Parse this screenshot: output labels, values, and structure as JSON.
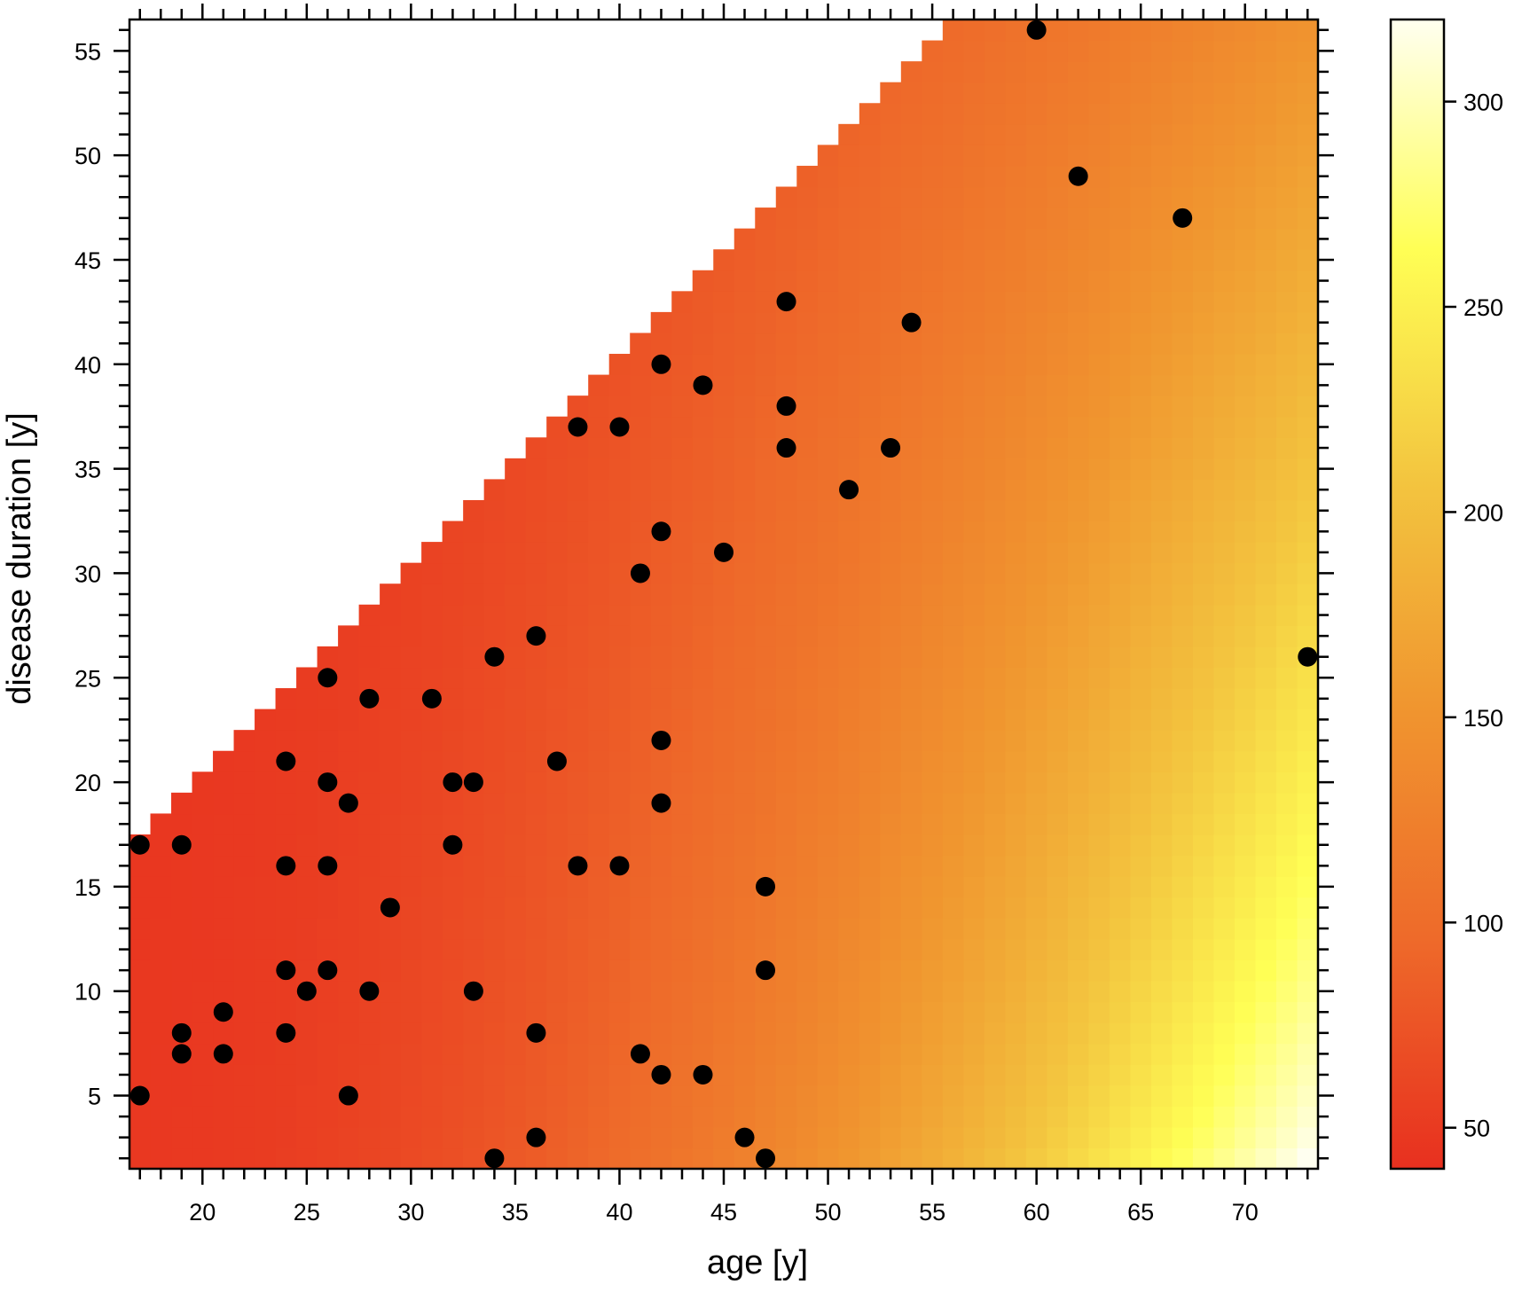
{
  "chart_data": {
    "type": "heatmap",
    "title": "",
    "xlabel": "age [y]",
    "ylabel": "disease duration [y]",
    "xlim": [
      16.5,
      73.5
    ],
    "ylim": [
      1.5,
      56.5
    ],
    "x_ticks": [
      20,
      25,
      30,
      35,
      40,
      45,
      50,
      55,
      60,
      65,
      70
    ],
    "y_ticks": [
      5,
      10,
      15,
      20,
      25,
      30,
      35,
      40,
      45,
      50,
      55
    ],
    "heatmap": {
      "x_range": [
        17,
        73
      ],
      "y_range": [
        2,
        56
      ],
      "valid_region": "duration <= age",
      "corner_values": {
        "young_low_duration": 48,
        "old_low_duration": 320,
        "young_high_duration": 45,
        "old_high_duration": 150
      }
    },
    "colorbar": {
      "range": [
        40,
        320
      ],
      "ticks": [
        50,
        100,
        150,
        200,
        250,
        300
      ],
      "colors": [
        "#e8301f",
        "#ee6a2a",
        "#f0952f",
        "#f3c53f",
        "#ffff55",
        "#fffff0"
      ]
    },
    "points": {
      "color": "#000000",
      "x": [
        17,
        17,
        19,
        19,
        19,
        21,
        21,
        24,
        24,
        24,
        24,
        25,
        26,
        26,
        26,
        26,
        27,
        27,
        28,
        28,
        29,
        31,
        32,
        32,
        33,
        33,
        34,
        34,
        36,
        36,
        36,
        37,
        38,
        38,
        40,
        40,
        41,
        41,
        42,
        42,
        42,
        42,
        42,
        44,
        44,
        45,
        46,
        47,
        47,
        47,
        48,
        48,
        48,
        51,
        53,
        54,
        60,
        62,
        67,
        73
      ],
      "y": [
        17,
        5,
        17,
        8,
        7,
        9,
        7,
        21,
        16,
        11,
        8,
        10,
        25,
        20,
        16,
        11,
        19,
        5,
        24,
        10,
        14,
        24,
        20,
        17,
        20,
        10,
        26,
        2,
        27,
        8,
        3,
        21,
        37,
        16,
        37,
        16,
        30,
        7,
        40,
        32,
        22,
        19,
        6,
        39,
        6,
        31,
        3,
        15,
        11,
        2,
        43,
        38,
        36,
        34,
        36,
        42,
        56,
        49,
        47,
        26
      ]
    }
  }
}
